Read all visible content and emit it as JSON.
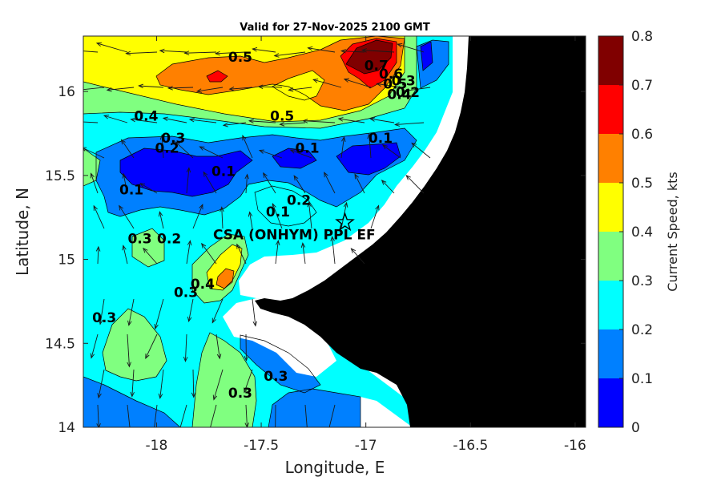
{
  "chart_data": {
    "type": "heatmap",
    "title": "Valid for 27-Nov-2025 2100 GMT",
    "xlabel": "Longitude, E",
    "ylabel": "Latitude, N",
    "xlim": [
      -18.35,
      -15.95
    ],
    "ylim": [
      14.0,
      16.33
    ],
    "x_ticks": [
      -18,
      -17.5,
      -17,
      -16.5,
      -16
    ],
    "x_tick_labels": [
      "-18",
      "-17.5",
      "-17",
      "-16.5",
      "-16"
    ],
    "y_ticks": [
      14,
      14.5,
      15,
      15.5,
      16
    ],
    "y_tick_labels": [
      "14",
      "14.5",
      "15",
      "15.5",
      "16"
    ],
    "colorbar": {
      "label": "Current Speed, kts",
      "range": [
        0,
        0.8
      ],
      "levels": [
        0,
        0.1,
        0.2,
        0.3,
        0.4,
        0.5,
        0.6,
        0.7,
        0.8
      ],
      "tick_labels": [
        "0",
        "0.1",
        "0.2",
        "0.3",
        "0.4",
        "0.5",
        "0.6",
        "0.7",
        "0.8"
      ],
      "colors": [
        "#0000ff",
        "#0080ff",
        "#00ffff",
        "#80ff80",
        "#ffff00",
        "#ff8000",
        "#ff0000",
        "#800000"
      ]
    },
    "land_color": "#000000",
    "nodata_color": "#ffffff",
    "station": {
      "name": "CSA (ONHYM) PPL EF",
      "lon": -17.1,
      "lat": 15.22
    },
    "contour_labels": [
      {
        "text": "0.5",
        "lon": -17.6,
        "lat": 16.2
      },
      {
        "text": "0.7",
        "lon": -16.95,
        "lat": 16.15
      },
      {
        "text": "0.6",
        "lon": -16.88,
        "lat": 16.1
      },
      {
        "text": "0.5",
        "lon": -16.86,
        "lat": 16.04
      },
      {
        "text": "0.4",
        "lon": -16.84,
        "lat": 15.98
      },
      {
        "text": "0.3",
        "lon": -16.82,
        "lat": 16.06
      },
      {
        "text": "0.2",
        "lon": -16.8,
        "lat": 15.99
      },
      {
        "text": "0.4",
        "lon": -18.05,
        "lat": 15.85
      },
      {
        "text": "0.5",
        "lon": -17.4,
        "lat": 15.85
      },
      {
        "text": "0.3",
        "lon": -17.92,
        "lat": 15.72
      },
      {
        "text": "0.2",
        "lon": -17.95,
        "lat": 15.66
      },
      {
        "text": "0.1",
        "lon": -17.28,
        "lat": 15.66
      },
      {
        "text": "0.1",
        "lon": -16.93,
        "lat": 15.72
      },
      {
        "text": "0.1",
        "lon": -17.68,
        "lat": 15.52
      },
      {
        "text": "0.1",
        "lon": -18.12,
        "lat": 15.41
      },
      {
        "text": "0.2",
        "lon": -17.32,
        "lat": 15.35
      },
      {
        "text": "0.1",
        "lon": -17.42,
        "lat": 15.28
      },
      {
        "text": "0.3",
        "lon": -18.08,
        "lat": 15.12
      },
      {
        "text": "0.2",
        "lon": -17.94,
        "lat": 15.12
      },
      {
        "text": "0.4",
        "lon": -17.78,
        "lat": 14.85
      },
      {
        "text": "0.3",
        "lon": -17.86,
        "lat": 14.8
      },
      {
        "text": "0.3",
        "lon": -18.25,
        "lat": 14.65
      },
      {
        "text": "0.3",
        "lon": -17.6,
        "lat": 14.2
      },
      {
        "text": "0.3",
        "lon": -17.43,
        "lat": 14.3
      }
    ]
  }
}
